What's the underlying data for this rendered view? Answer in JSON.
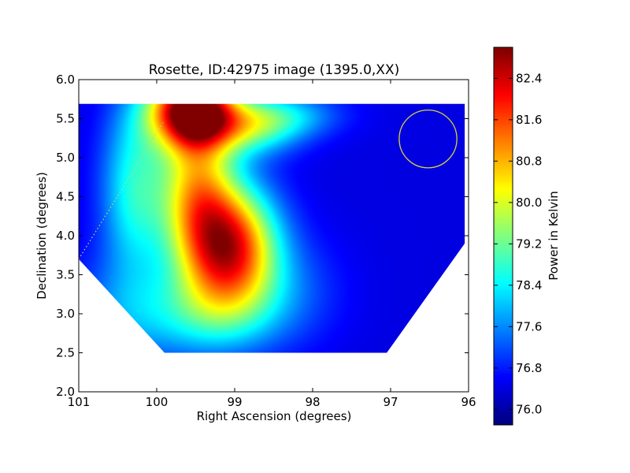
{
  "chart_data": {
    "type": "heatmap",
    "title": "Rosette, ID:42975 image (1395.0,XX)",
    "xlabel": "Right Ascension (degrees)",
    "ylabel": "Declination (degrees)",
    "xlim": [
      101,
      96
    ],
    "ylim": [
      2.0,
      6.0
    ],
    "x_ticks": [
      "101",
      "100",
      "99",
      "98",
      "97",
      "96"
    ],
    "y_ticks": [
      "2.0",
      "2.5",
      "3.0",
      "3.5",
      "4.0",
      "4.5",
      "5.0",
      "5.5",
      "6.0"
    ],
    "x_tick_values": [
      101,
      100,
      99,
      98,
      97,
      96
    ],
    "y_tick_values": [
      2.0,
      2.5,
      3.0,
      3.5,
      4.0,
      4.5,
      5.0,
      5.5,
      6.0
    ],
    "colorbar": {
      "label": "Power in Kelvin",
      "min": 75.7,
      "max": 83.0,
      "ticks": [
        "76.0",
        "76.8",
        "77.6",
        "78.4",
        "79.2",
        "80.0",
        "80.8",
        "81.6",
        "82.4"
      ],
      "tick_values": [
        76.0,
        76.8,
        77.6,
        78.4,
        79.2,
        80.0,
        80.8,
        81.6,
        82.4
      ],
      "colormap": "jet"
    },
    "field_polygon": [
      [
        101.0,
        5.69
      ],
      [
        96.05,
        5.69
      ],
      [
        96.05,
        3.9
      ],
      [
        97.05,
        2.5
      ],
      [
        99.9,
        2.5
      ],
      [
        101.0,
        3.7
      ]
    ],
    "background_level": 76.4,
    "sources": [
      {
        "ra": 99.55,
        "dec": 5.62,
        "peak": 83.0,
        "sigma_ra": 0.38,
        "sigma_dec": 0.33
      },
      {
        "ra": 99.05,
        "dec": 3.85,
        "peak": 81.7,
        "sigma_ra": 0.42,
        "sigma_dec": 0.55
      },
      {
        "ra": 99.5,
        "dec": 4.6,
        "peak": 80.0,
        "sigma_ra": 0.35,
        "sigma_dec": 0.7
      },
      {
        "ra": 100.3,
        "dec": 4.6,
        "peak": 78.5,
        "sigma_ra": 0.3,
        "sigma_dec": 0.8
      },
      {
        "ra": 98.8,
        "dec": 5.4,
        "peak": 78.9,
        "sigma_ra": 0.45,
        "sigma_dec": 0.25
      },
      {
        "ra": 98.3,
        "dec": 5.55,
        "peak": 77.6,
        "sigma_ra": 0.5,
        "sigma_dec": 0.2
      },
      {
        "ra": 100.4,
        "dec": 3.0,
        "peak": 77.4,
        "sigma_ra": 0.6,
        "sigma_dec": 0.5
      },
      {
        "ra": 99.3,
        "dec": 3.0,
        "peak": 78.0,
        "sigma_ra": 0.6,
        "sigma_dec": 0.4
      },
      {
        "ra": 98.3,
        "dec": 3.3,
        "peak": 77.1,
        "sigma_ra": 0.5,
        "sigma_dec": 0.5
      }
    ],
    "beam_circle": {
      "ra": 96.52,
      "dec": 5.24,
      "radius_deg": 0.37,
      "color": "#d8d23a"
    },
    "dotted_line": {
      "from": [
        101.0,
        3.7
      ],
      "to": [
        99.92,
        5.45
      ],
      "color": "#c8d87a"
    },
    "grid": false,
    "legend": "none"
  }
}
